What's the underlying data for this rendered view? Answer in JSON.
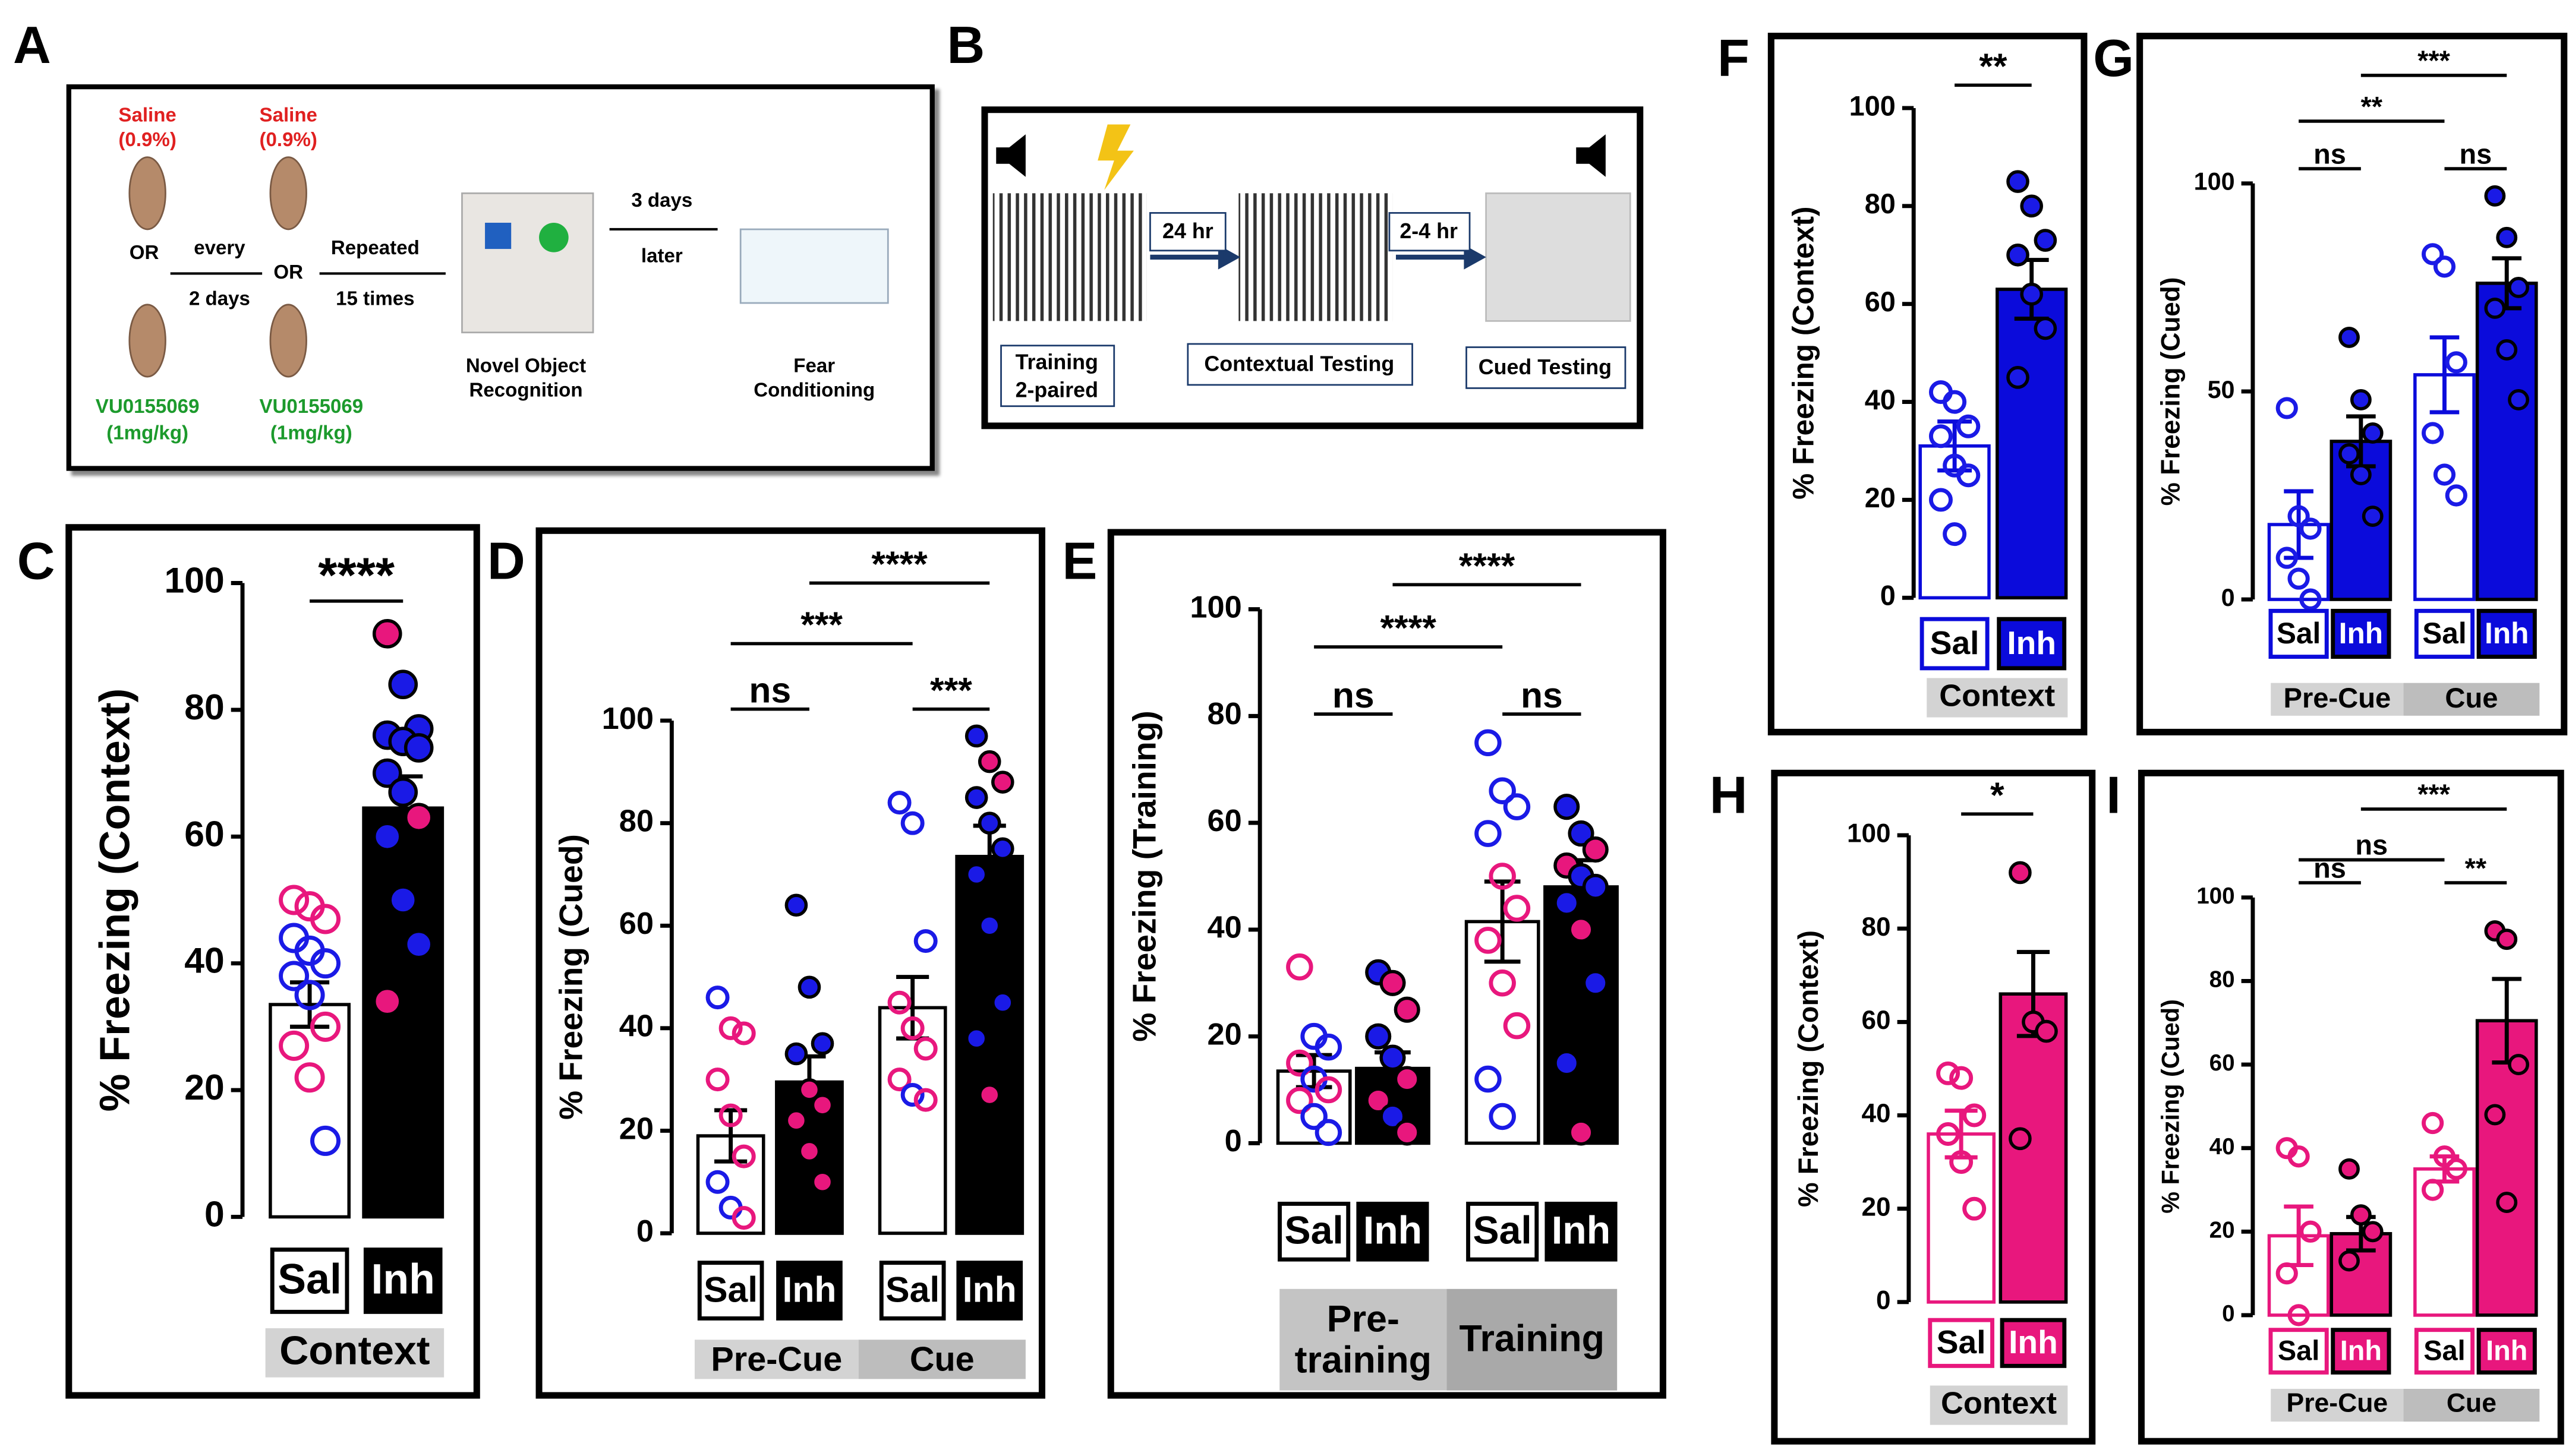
{
  "diagram_a": {
    "label": "A",
    "saline": "Saline",
    "saline_dose": "(0.9%)",
    "or": "OR",
    "every": "every",
    "days2": "2 days",
    "repeated": "Repeated",
    "times": "15 times",
    "drug": "VU0155069",
    "drug_dose": "(1mg/kg)",
    "nor": [
      "Novel Object",
      "Recognition"
    ],
    "later": [
      "3 days",
      "later"
    ],
    "fear": [
      "Fear",
      "Conditioning"
    ]
  },
  "diagram_b": {
    "label": "B",
    "interval1": "24 hr",
    "interval2": "2-4 hr",
    "training": [
      "Training",
      "2-paired"
    ],
    "contextual": "Contextual Testing",
    "cued": "Cued Testing"
  },
  "chart_data": [
    {
      "type": "bar",
      "panel": "C",
      "ylabel": "% Freezing (Context)",
      "ylim": [
        0,
        100
      ],
      "yticks": [
        0,
        20,
        40,
        60,
        80,
        100
      ],
      "categories": [
        "Sal",
        "Inh"
      ],
      "groups": [
        "Context"
      ],
      "group_fills": [
        "#d3d3d3"
      ],
      "bar_colors": [
        "#ffffff",
        "#000000"
      ],
      "bar_edges": [
        "#000000",
        "#000000"
      ],
      "values": [
        33.5,
        64.5
      ],
      "errors": [
        3.5,
        5
      ],
      "annotations": [
        "****"
      ],
      "points": [
        [
          50,
          49,
          47,
          44,
          42,
          40,
          38,
          35,
          30,
          27,
          22,
          12
        ],
        [
          92,
          84,
          77,
          76,
          75,
          74,
          70,
          67,
          63,
          60,
          50,
          43,
          34
        ]
      ],
      "point_colors": [
        [
          "#e8177d",
          "#e8177d",
          "#e8177d",
          "#1a1ae6",
          "#1a1ae6",
          "#1a1ae6",
          "#1a1ae6",
          "#1a1ae6",
          "#e8177d",
          "#e8177d",
          "#e8177d",
          "#1a1ae6"
        ],
        [
          "#e8177d",
          "#1a1ae6",
          "#1a1ae6",
          "#1a1ae6",
          "#1a1ae6",
          "#1a1ae6",
          "#1a1ae6",
          "#1a1ae6",
          "#e8177d",
          "#1a1ae6",
          "#1a1ae6",
          "#1a1ae6",
          "#e8177d"
        ]
      ]
    },
    {
      "type": "bar",
      "panel": "D",
      "ylabel": "% Freezing (Cued)",
      "ylim": [
        0,
        100
      ],
      "yticks": [
        0,
        20,
        40,
        60,
        80,
        100
      ],
      "categories": [
        "Sal",
        "Inh",
        "Sal",
        "Inh"
      ],
      "groups": [
        "Pre-Cue",
        "Cue"
      ],
      "group_fills": [
        "#d3d3d3",
        "#bdbdbd"
      ],
      "bar_colors": [
        "#ffffff",
        "#000000",
        "#ffffff",
        "#000000"
      ],
      "bar_edges": [
        "#000000",
        "#000000",
        "#000000",
        "#000000"
      ],
      "values": [
        19,
        29.5,
        44,
        73.5
      ],
      "errors": [
        5,
        5,
        6,
        6
      ],
      "annotations": [
        "ns",
        "***",
        "***",
        "****"
      ],
      "points": [
        [
          46,
          40,
          39,
          30,
          23,
          15,
          10,
          5,
          3
        ],
        [
          64,
          48,
          37,
          35,
          28,
          25,
          22,
          16,
          10
        ],
        [
          84,
          80,
          57,
          45,
          40,
          36,
          30,
          27,
          26
        ],
        [
          97,
          92,
          88,
          85,
          80,
          75,
          70,
          60,
          45,
          38,
          27
        ]
      ],
      "point_colors": [
        [
          "#1a1ae6",
          "#e8177d",
          "#e8177d",
          "#e8177d",
          "#e8177d",
          "#e8177d",
          "#1a1ae6",
          "#1a1ae6",
          "#e8177d"
        ],
        [
          "#1a1ae6",
          "#1a1ae6",
          "#1a1ae6",
          "#1a1ae6",
          "#e8177d",
          "#e8177d",
          "#e8177d",
          "#e8177d",
          "#e8177d"
        ],
        [
          "#1a1ae6",
          "#1a1ae6",
          "#1a1ae6",
          "#e8177d",
          "#e8177d",
          "#e8177d",
          "#e8177d",
          "#1a1ae6",
          "#e8177d"
        ],
        [
          "#1a1ae6",
          "#e8177d",
          "#e8177d",
          "#1a1ae6",
          "#1a1ae6",
          "#1a1ae6",
          "#1a1ae6",
          "#1a1ae6",
          "#1a1ae6",
          "#1a1ae6",
          "#e8177d"
        ]
      ]
    },
    {
      "type": "bar",
      "panel": "E",
      "ylabel": "% Freezing (Training)",
      "ylim": [
        0,
        100
      ],
      "yticks": [
        0,
        20,
        40,
        60,
        80,
        100
      ],
      "categories": [
        "Sal",
        "Inh",
        "Sal",
        "Inh"
      ],
      "groups": [
        "Pre-training",
        "Training"
      ],
      "group_fills": [
        "#c4c4c4",
        "#a9a9a9"
      ],
      "bar_colors": [
        "#ffffff",
        "#000000",
        "#ffffff",
        "#000000"
      ],
      "bar_edges": [
        "#000000",
        "#000000",
        "#000000",
        "#000000"
      ],
      "values": [
        13.5,
        14,
        41.5,
        48
      ],
      "errors": [
        3,
        3,
        7.5,
        5
      ],
      "annotations": [
        "ns",
        "ns",
        "****",
        "****"
      ],
      "points": [
        [
          33,
          20,
          18,
          15,
          12,
          10,
          8,
          5,
          2
        ],
        [
          32,
          30,
          25,
          20,
          16,
          12,
          8,
          5,
          2
        ],
        [
          75,
          66,
          63,
          58,
          50,
          44,
          38,
          30,
          22,
          12,
          5
        ],
        [
          63,
          58,
          55,
          52,
          50,
          48,
          45,
          40,
          30,
          15,
          2
        ]
      ],
      "point_colors": [
        [
          "#e8177d",
          "#1a1ae6",
          "#1a1ae6",
          "#e8177d",
          "#1a1ae6",
          "#e8177d",
          "#e8177d",
          "#1a1ae6",
          "#1a1ae6"
        ],
        [
          "#1a1ae6",
          "#e8177d",
          "#e8177d",
          "#1a1ae6",
          "#1a1ae6",
          "#e8177d",
          "#e8177d",
          "#1a1ae6",
          "#e8177d"
        ],
        [
          "#1a1ae6",
          "#1a1ae6",
          "#1a1ae6",
          "#1a1ae6",
          "#e8177d",
          "#e8177d",
          "#e8177d",
          "#e8177d",
          "#e8177d",
          "#1a1ae6",
          "#1a1ae6"
        ],
        [
          "#1a1ae6",
          "#1a1ae6",
          "#e8177d",
          "#e8177d",
          "#1a1ae6",
          "#1a1ae6",
          "#1a1ae6",
          "#e8177d",
          "#1a1ae6",
          "#1a1ae6",
          "#e8177d"
        ]
      ]
    },
    {
      "type": "bar",
      "panel": "F",
      "ylabel": "% Freezing (Context)",
      "ylim": [
        0,
        100
      ],
      "yticks": [
        0,
        20,
        40,
        60,
        80,
        100
      ],
      "categories": [
        "Sal",
        "Inh"
      ],
      "groups": [
        "Context"
      ],
      "group_fills": [
        "#d3d3d3"
      ],
      "bar_colors": [
        "#ffffff",
        "#0b0bdb"
      ],
      "bar_edges": [
        "#0b0bdb",
        "#000000"
      ],
      "values": [
        31,
        63
      ],
      "errors": [
        5,
        6
      ],
      "annotations": [
        "**"
      ],
      "points": [
        [
          42,
          40,
          35,
          33,
          27,
          25,
          20,
          13
        ],
        [
          85,
          80,
          73,
          70,
          62,
          55,
          45
        ]
      ],
      "point_colors": [
        [
          "#1a1ae6",
          "#1a1ae6",
          "#1a1ae6",
          "#1a1ae6",
          "#1a1ae6",
          "#1a1ae6",
          "#1a1ae6",
          "#1a1ae6"
        ],
        [
          "#1a1ae6",
          "#1a1ae6",
          "#1a1ae6",
          "#1a1ae6",
          "#1a1ae6",
          "#1a1ae6",
          "#1a1ae6"
        ]
      ]
    },
    {
      "type": "bar",
      "panel": "G",
      "ylabel": "% Freezing (Cued)",
      "ylim": [
        0,
        100
      ],
      "yticks": [
        0,
        50,
        100
      ],
      "categories": [
        "Sal",
        "Inh",
        "Sal",
        "Inh"
      ],
      "groups": [
        "Pre-Cue",
        "Cue"
      ],
      "group_fills": [
        "#d3d3d3",
        "#bdbdbd"
      ],
      "bar_colors": [
        "#ffffff",
        "#0b0bdb",
        "#ffffff",
        "#0b0bdb"
      ],
      "bar_edges": [
        "#0b0bdb",
        "#000000",
        "#0b0bdb",
        "#000000"
      ],
      "values": [
        18,
        38,
        54,
        76
      ],
      "errors": [
        8,
        6,
        9,
        6
      ],
      "annotations": [
        "ns",
        "ns",
        "**",
        "***"
      ],
      "points": [
        [
          46,
          20,
          17,
          10,
          5,
          0
        ],
        [
          63,
          48,
          40,
          35,
          30,
          20
        ],
        [
          83,
          80,
          57,
          40,
          30,
          25
        ],
        [
          97,
          87,
          75,
          70,
          60,
          48
        ]
      ],
      "point_colors": [
        [
          "#1a1ae6",
          "#1a1ae6",
          "#1a1ae6",
          "#1a1ae6",
          "#1a1ae6",
          "#1a1ae6"
        ],
        [
          "#1a1ae6",
          "#1a1ae6",
          "#1a1ae6",
          "#1a1ae6",
          "#1a1ae6",
          "#1a1ae6"
        ],
        [
          "#1a1ae6",
          "#1a1ae6",
          "#1a1ae6",
          "#1a1ae6",
          "#1a1ae6",
          "#1a1ae6"
        ],
        [
          "#1a1ae6",
          "#1a1ae6",
          "#1a1ae6",
          "#1a1ae6",
          "#1a1ae6",
          "#1a1ae6"
        ]
      ]
    },
    {
      "type": "bar",
      "panel": "H",
      "ylabel": "% Freezing (Context)",
      "ylim": [
        0,
        100
      ],
      "yticks": [
        0,
        20,
        40,
        60,
        80,
        100
      ],
      "categories": [
        "Sal",
        "Inh"
      ],
      "groups": [
        "Context"
      ],
      "group_fills": [
        "#d3d3d3"
      ],
      "bar_colors": [
        "#ffffff",
        "#e8177d"
      ],
      "bar_edges": [
        "#e8177d",
        "#000000"
      ],
      "values": [
        36,
        66
      ],
      "errors": [
        5,
        9
      ],
      "annotations": [
        "*"
      ],
      "points": [
        [
          49,
          48,
          40,
          36,
          30,
          20
        ],
        [
          92,
          60,
          58,
          35
        ]
      ],
      "point_colors": [
        [
          "#e8177d",
          "#e8177d",
          "#e8177d",
          "#e8177d",
          "#e8177d",
          "#e8177d"
        ],
        [
          "#e8177d",
          "#e8177d",
          "#e8177d",
          "#e8177d"
        ]
      ]
    },
    {
      "type": "bar",
      "panel": "I",
      "ylabel": "% Freezing (Cued)",
      "ylim": [
        0,
        100
      ],
      "yticks": [
        0,
        20,
        40,
        60,
        80,
        100
      ],
      "categories": [
        "Sal",
        "Inh",
        "Sal",
        "Inh"
      ],
      "groups": [
        "Pre-Cue",
        "Cue"
      ],
      "group_fills": [
        "#d3d3d3",
        "#bdbdbd"
      ],
      "bar_colors": [
        "#ffffff",
        "#e8177d",
        "#ffffff",
        "#e8177d"
      ],
      "bar_edges": [
        "#e8177d",
        "#000000",
        "#e8177d",
        "#000000"
      ],
      "values": [
        19,
        19.5,
        35,
        70.5
      ],
      "errors": [
        7,
        4,
        3,
        10
      ],
      "annotations": [
        "ns",
        "**",
        "ns",
        "***"
      ],
      "points": [
        [
          40,
          38,
          20,
          10,
          0
        ],
        [
          35,
          24,
          20,
          13
        ],
        [
          46,
          38,
          35,
          30
        ],
        [
          92,
          90,
          60,
          48,
          27
        ]
      ],
      "point_colors": [
        [
          "#e8177d",
          "#e8177d",
          "#e8177d",
          "#e8177d",
          "#e8177d"
        ],
        [
          "#e8177d",
          "#e8177d",
          "#e8177d",
          "#e8177d"
        ],
        [
          "#e8177d",
          "#e8177d",
          "#e8177d",
          "#e8177d"
        ],
        [
          "#e8177d",
          "#e8177d",
          "#e8177d",
          "#e8177d",
          "#e8177d"
        ]
      ]
    }
  ]
}
